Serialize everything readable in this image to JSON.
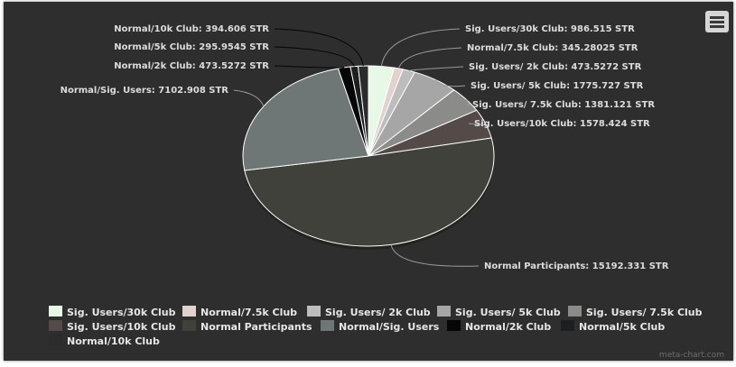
{
  "chart_data": {
    "type": "pie",
    "title": "",
    "unit": "STR",
    "slices": [
      {
        "label": "Sig. Users/30k Club",
        "value": 986.515,
        "display_value": "986.515",
        "color": "#e8f8e6",
        "legend_label": "Sig. Users/30k Club"
      },
      {
        "label": "Normal/7.5k Club",
        "value": 345.28025,
        "display_value": "345.28025",
        "color": "#e2d2cf",
        "legend_label": "Normal/7.5k Club"
      },
      {
        "label": "Sig. Users/ 2k Club",
        "value": 473.5272,
        "display_value": "473.5272",
        "color": "#bdbdbd",
        "legend_label": "Sig. Users/ 2k Club"
      },
      {
        "label": "Sig. Users/ 5k Club",
        "value": 1775.727,
        "display_value": "1775.727",
        "color": "#a6a6a6",
        "legend_label": "Sig. Users/ 5k Club"
      },
      {
        "label": "Sig. Users/ 7.5k Club",
        "value": 1381.121,
        "display_value": "1381.121",
        "color": "#8b8c89",
        "legend_label": "Sig. Users/ 7.5k Club"
      },
      {
        "label": "Sig. Users/10k Club",
        "value": 1578.424,
        "display_value": "1578.424",
        "color": "#544a47",
        "legend_label": "Sig. Users/10k Club"
      },
      {
        "label": "Normal Participants",
        "value": 15192.331,
        "display_value": "15192.331",
        "color": "#40413b",
        "legend_label": "Normal Participants"
      },
      {
        "label": "Normal/Sig. Users",
        "value": 7102.908,
        "display_value": "7102.908",
        "color": "#6e7775",
        "legend_label": "Normal/Sig. Users"
      },
      {
        "label": "Normal/2k Club",
        "value": 473.5272,
        "display_value": "473.5272",
        "color": "#060606",
        "legend_label": "Normal/2k Club"
      },
      {
        "label": "Normal/5k Club",
        "value": 295.9545,
        "display_value": "295.9545",
        "color": "#1b1f20",
        "legend_label": "Normal/5k Club"
      },
      {
        "label": "Normal/10k Club",
        "value": 394.606,
        "display_value": "394.606",
        "color": "#2b2b2b",
        "legend_label": "Normal/10k Club"
      }
    ],
    "legend_position": "bottom",
    "colors": {
      "background": "#2e2e2e",
      "slice_border": "#ffffff",
      "label": "#dcdcdc",
      "connector": "#9a9a9a"
    }
  },
  "toolbar": {
    "menu_icon": "hamburger-menu-icon"
  },
  "credit": "meta-chart.com"
}
